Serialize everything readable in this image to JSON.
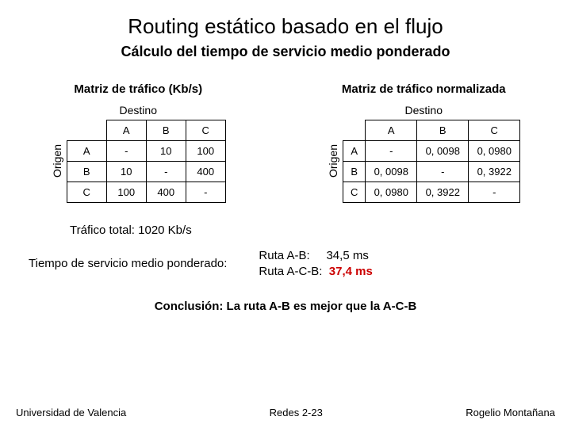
{
  "title": "Routing estático basado en el flujo",
  "subtitle": "Cálculo del tiempo de servicio medio ponderado",
  "matrix1": {
    "title": "Matriz de tráfico (Kb/s)",
    "destino": "Destino",
    "origen": "Origen",
    "cols": [
      "A",
      "B",
      "C"
    ],
    "rows": [
      {
        "h": "A",
        "c": [
          "-",
          "10",
          "100"
        ]
      },
      {
        "h": "B",
        "c": [
          "10",
          "-",
          "400"
        ]
      },
      {
        "h": "C",
        "c": [
          "100",
          "400",
          "-"
        ]
      }
    ]
  },
  "matrix2": {
    "title": "Matriz de tráfico normalizada",
    "destino": "Destino",
    "origen": "Origen",
    "cols": [
      "A",
      "B",
      "C"
    ],
    "rows": [
      {
        "h": "A",
        "c": [
          "-",
          "0, 0098",
          "0, 0980"
        ]
      },
      {
        "h": "B",
        "c": [
          "0, 0098",
          "-",
          "0, 3922"
        ]
      },
      {
        "h": "C",
        "c": [
          "0, 0980",
          "0, 3922",
          "-"
        ]
      }
    ]
  },
  "traffic_total": "Tráfico total: 1020 Kb/s",
  "weighted_label": "Tiempo de servicio medio ponderado:",
  "route1": {
    "label": "Ruta A-B:",
    "value": "34,5 ms"
  },
  "route2": {
    "label": "Ruta A-C-B:",
    "value": "37,4 ms"
  },
  "conclusion": "Conclusión: La ruta A-B es mejor que la A-C-B",
  "footer": {
    "left": "Universidad de Valencia",
    "center": "Redes 2-23",
    "right": "Rogelio Montañana"
  },
  "colors": {
    "worst": "#cc0000",
    "text": "#000000",
    "bg": "#ffffff",
    "border": "#000000"
  }
}
